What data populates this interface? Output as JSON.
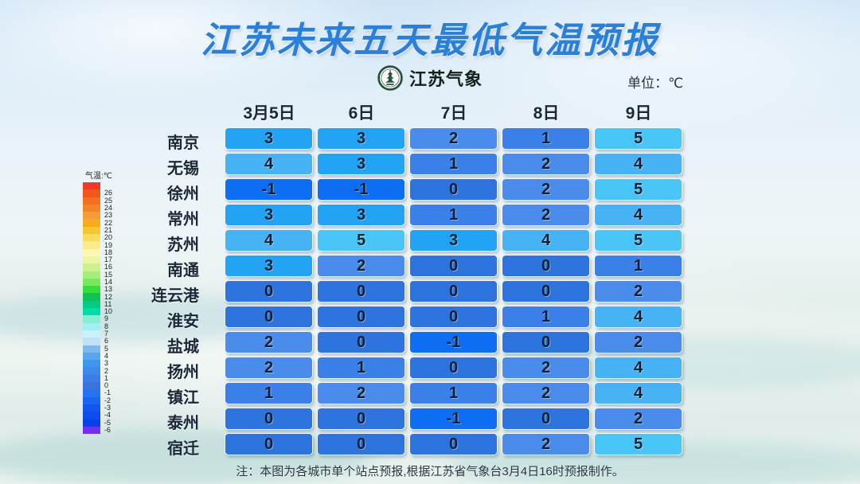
{
  "logo": {
    "text": "江苏气象",
    "icon": "pagoda-emblem-icon"
  },
  "unit_label": "单位：℃",
  "note": "注：本图为各城市单个站点预报,根据江苏省气象台3月4日16时预报制作。",
  "temp_colors": {
    "-1": "#0d6ef3",
    "0": "#2e74de",
    "1": "#3b80e8",
    "2": "#4a8ceb",
    "3": "#22a3f3",
    "4": "#47b3f4",
    "5": "#49c6f7"
  },
  "chart_data": {
    "type": "heatmap",
    "title": "江苏未来五天最低气温预报",
    "unit": "℃",
    "categories": [
      "3月5日",
      "6日",
      "7日",
      "8日",
      "9日"
    ],
    "series": [
      {
        "name": "南京",
        "values": [
          3,
          3,
          2,
          1,
          5
        ]
      },
      {
        "name": "无锡",
        "values": [
          4,
          3,
          1,
          2,
          4
        ]
      },
      {
        "name": "徐州",
        "values": [
          -1,
          -1,
          0,
          2,
          5
        ]
      },
      {
        "name": "常州",
        "values": [
          3,
          3,
          1,
          2,
          4
        ]
      },
      {
        "name": "苏州",
        "values": [
          4,
          5,
          3,
          4,
          5
        ]
      },
      {
        "name": "南通",
        "values": [
          3,
          2,
          0,
          0,
          1
        ]
      },
      {
        "name": "连云港",
        "values": [
          0,
          0,
          0,
          0,
          2
        ]
      },
      {
        "name": "淮安",
        "values": [
          0,
          0,
          0,
          1,
          4
        ]
      },
      {
        "name": "盐城",
        "values": [
          2,
          0,
          -1,
          0,
          2
        ]
      },
      {
        "name": "扬州",
        "values": [
          2,
          1,
          0,
          2,
          4
        ]
      },
      {
        "name": "镇江",
        "values": [
          1,
          2,
          1,
          2,
          4
        ]
      },
      {
        "name": "泰州",
        "values": [
          0,
          0,
          -1,
          0,
          2
        ]
      },
      {
        "name": "宿迁",
        "values": [
          0,
          0,
          0,
          2,
          5
        ]
      }
    ],
    "colorbar": {
      "title": "气温:℃",
      "range": [
        -6,
        26
      ],
      "entries": [
        {
          "label": "",
          "color": "#ee3a26"
        },
        {
          "label": "26",
          "color": "#f1561f"
        },
        {
          "label": "25",
          "color": "#f2701f"
        },
        {
          "label": "24",
          "color": "#f28526"
        },
        {
          "label": "23",
          "color": "#f49a3a"
        },
        {
          "label": "22",
          "color": "#f5ad1e"
        },
        {
          "label": "21",
          "color": "#f7c633"
        },
        {
          "label": "20",
          "color": "#f9dc5c"
        },
        {
          "label": "19",
          "color": "#fbeb8a"
        },
        {
          "label": "18",
          "color": "#fdf6b4"
        },
        {
          "label": "17",
          "color": "#ecf6a2"
        },
        {
          "label": "16",
          "color": "#ccf18f"
        },
        {
          "label": "15",
          "color": "#a6ed7b"
        },
        {
          "label": "14",
          "color": "#76e95e"
        },
        {
          "label": "13",
          "color": "#35df3b"
        },
        {
          "label": "12",
          "color": "#0fc253"
        },
        {
          "label": "11",
          "color": "#00cc86"
        },
        {
          "label": "10",
          "color": "#00dcab"
        },
        {
          "label": "9",
          "color": "#85efd1"
        },
        {
          "label": "8",
          "color": "#a2eef2"
        },
        {
          "label": "7",
          "color": "#c6f2f8"
        },
        {
          "label": "6",
          "color": "#c3e1f6"
        },
        {
          "label": "5",
          "color": "#7db9ee"
        },
        {
          "label": "4",
          "color": "#5aa6ec"
        },
        {
          "label": "3",
          "color": "#3e96ee"
        },
        {
          "label": "2",
          "color": "#3e89ec"
        },
        {
          "label": "1",
          "color": "#3a7de8"
        },
        {
          "label": "0",
          "color": "#3a73dc"
        },
        {
          "label": "-1",
          "color": "#2673f2"
        },
        {
          "label": "-2",
          "color": "#1d64f0"
        },
        {
          "label": "-3",
          "color": "#1356ef"
        },
        {
          "label": "-4",
          "color": "#0b4bf0"
        },
        {
          "label": "-5",
          "color": "#0540ea"
        },
        {
          "label": "-6",
          "color": "#7030f0"
        }
      ]
    }
  }
}
